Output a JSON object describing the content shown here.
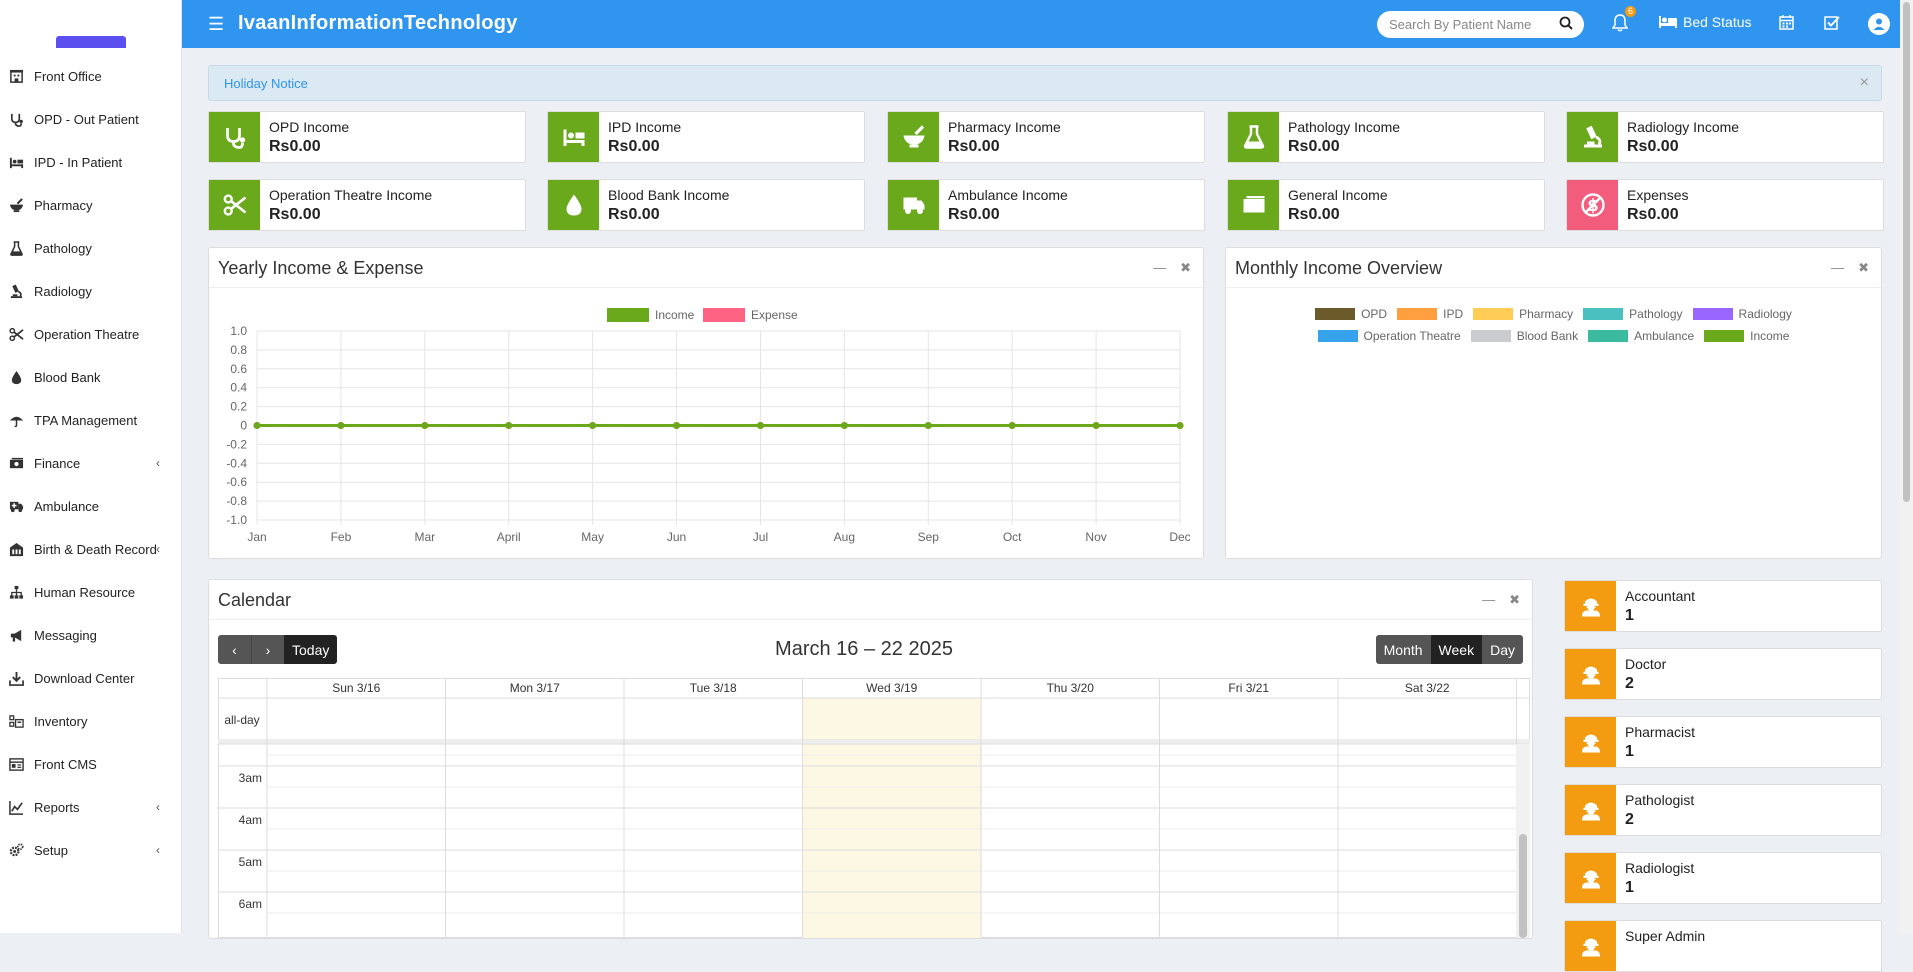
{
  "header": {
    "brand": "IvaanInformationTechnology",
    "search_placeholder": "Search By Patient Name",
    "notification_count": "6",
    "bed_status": "Bed Status"
  },
  "sidebar": {
    "items": [
      {
        "label": "Front Office",
        "icon": "front-office-icon"
      },
      {
        "label": "OPD - Out Patient",
        "icon": "stethoscope-icon"
      },
      {
        "label": "IPD - In Patient",
        "icon": "bed-icon"
      },
      {
        "label": "Pharmacy",
        "icon": "mortar-icon"
      },
      {
        "label": "Pathology",
        "icon": "flask-icon"
      },
      {
        "label": "Radiology",
        "icon": "microscope-icon"
      },
      {
        "label": "Operation Theatre",
        "icon": "scissors-icon"
      },
      {
        "label": "Blood Bank",
        "icon": "drop-icon"
      },
      {
        "label": "TPA Management",
        "icon": "umbrella-icon"
      },
      {
        "label": "Finance",
        "icon": "money-icon",
        "has_children": true
      },
      {
        "label": "Ambulance",
        "icon": "ambulance-icon"
      },
      {
        "label": "Birth & Death Record",
        "icon": "building-icon",
        "has_children": true
      },
      {
        "label": "Human Resource",
        "icon": "sitemap-icon"
      },
      {
        "label": "Messaging",
        "icon": "bullhorn-icon"
      },
      {
        "label": "Download Center",
        "icon": "download-icon"
      },
      {
        "label": "Inventory",
        "icon": "inventory-icon"
      },
      {
        "label": "Front CMS",
        "icon": "cms-icon"
      },
      {
        "label": "Reports",
        "icon": "chart-icon",
        "has_children": true
      },
      {
        "label": "Setup",
        "icon": "gears-icon",
        "has_children": true
      }
    ]
  },
  "notice": {
    "text": "Holiday Notice",
    "close": "×"
  },
  "income_boxes": [
    {
      "label": "OPD Income",
      "value": "Rs0.00",
      "color": "#6aa81c",
      "icon": "stethoscope-icon"
    },
    {
      "label": "IPD Income",
      "value": "Rs0.00",
      "color": "#6aa81c",
      "icon": "bed-icon"
    },
    {
      "label": "Pharmacy Income",
      "value": "Rs0.00",
      "color": "#6aa81c",
      "icon": "mortar-icon"
    },
    {
      "label": "Pathology Income",
      "value": "Rs0.00",
      "color": "#6aa81c",
      "icon": "flask-icon"
    },
    {
      "label": "Radiology Income",
      "value": "Rs0.00",
      "color": "#6aa81c",
      "icon": "microscope-icon"
    },
    {
      "label": "Operation Theatre Income",
      "value": "Rs0.00",
      "color": "#6aa81c",
      "icon": "scissors-icon"
    },
    {
      "label": "Blood Bank Income",
      "value": "Rs0.00",
      "color": "#6aa81c",
      "icon": "drop-icon"
    },
    {
      "label": "Ambulance Income",
      "value": "Rs0.00",
      "color": "#6aa81c",
      "icon": "ambulance-icon"
    },
    {
      "label": "General Income",
      "value": "Rs0.00",
      "color": "#6aa81c",
      "icon": "money-icon"
    },
    {
      "label": "Expenses",
      "value": "Rs0.00",
      "color": "#f25c7d",
      "icon": "expense-icon"
    }
  ],
  "yearly_chart": {
    "box_title": "Yearly Income & Expense",
    "chart_data": {
      "type": "line",
      "categories": [
        "Jan",
        "Feb",
        "Mar",
        "April",
        "May",
        "Jun",
        "Jul",
        "Aug",
        "Sep",
        "Oct",
        "Nov",
        "Dec"
      ],
      "series": [
        {
          "name": "Income",
          "color": "#6aa81c",
          "values": [
            0,
            0,
            0,
            0,
            0,
            0,
            0,
            0,
            0,
            0,
            0,
            0
          ]
        },
        {
          "name": "Expense",
          "color": "#ff6384",
          "values": [
            0,
            0,
            0,
            0,
            0,
            0,
            0,
            0,
            0,
            0,
            0,
            0
          ]
        }
      ],
      "ylim": [
        -1.0,
        1.0
      ],
      "yticks": [
        "1.0",
        "0.8",
        "0.6",
        "0.4",
        "0.2",
        "0",
        "-0.2",
        "-0.4",
        "-0.6",
        "-0.8",
        "-1.0"
      ],
      "legend": "top",
      "grid": true
    }
  },
  "monthly_overview": {
    "box_title": "Monthly Income Overview",
    "legend": [
      {
        "name": "OPD",
        "color": "#6b5a2a"
      },
      {
        "name": "IPD",
        "color": "#ff9f40"
      },
      {
        "name": "Pharmacy",
        "color": "#ffcd56"
      },
      {
        "name": "Pathology",
        "color": "#4bc0c0"
      },
      {
        "name": "Radiology",
        "color": "#9966ff"
      },
      {
        "name": "Operation Theatre",
        "color": "#36a2eb"
      },
      {
        "name": "Blood Bank",
        "color": "#c9cbcf"
      },
      {
        "name": "Ambulance",
        "color": "#3cba9f"
      },
      {
        "name": "Income",
        "color": "#6aa81c"
      }
    ]
  },
  "calendar": {
    "box_title": "Calendar",
    "prev": "‹",
    "next": "›",
    "today": "Today",
    "title": "March 16 – 22 2025",
    "views": [
      "Month",
      "Week",
      "Day"
    ],
    "active_view": "Week",
    "days": [
      "Sun 3/16",
      "Mon 3/17",
      "Tue 3/18",
      "Wed 3/19",
      "Thu 3/20",
      "Fri 3/21",
      "Sat 3/22"
    ],
    "today_index": 3,
    "all_day": "all-day",
    "times": [
      "3am",
      "4am",
      "5am",
      "6am"
    ]
  },
  "staff": [
    {
      "label": "Accountant",
      "value": "1"
    },
    {
      "label": "Doctor",
      "value": "2"
    },
    {
      "label": "Pharmacist",
      "value": "1"
    },
    {
      "label": "Pathologist",
      "value": "2"
    },
    {
      "label": "Radiologist",
      "value": "1"
    },
    {
      "label": "Super Admin",
      "value": ""
    }
  ]
}
